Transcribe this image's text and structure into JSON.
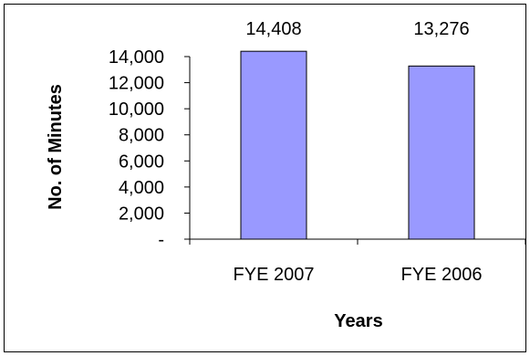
{
  "chart_data": {
    "type": "bar",
    "categories": [
      "FYE 2007",
      "FYE 2006"
    ],
    "values": [
      14408,
      13276
    ],
    "data_labels": [
      "14,408",
      "13,276"
    ],
    "xlabel": "Years",
    "ylabel": "No. of Minutes",
    "ylim": [
      0,
      14000
    ],
    "y_ticks": [
      0,
      2000,
      4000,
      6000,
      8000,
      10000,
      12000,
      14000
    ],
    "y_tick_labels": [
      "-",
      "2,000",
      "4,000",
      "6,000",
      "8,000",
      "10,000",
      "12,000",
      "14,000"
    ],
    "grid": false,
    "legend": "none",
    "bar_color": "#9999ff",
    "bar_edge_color": "#000000"
  }
}
